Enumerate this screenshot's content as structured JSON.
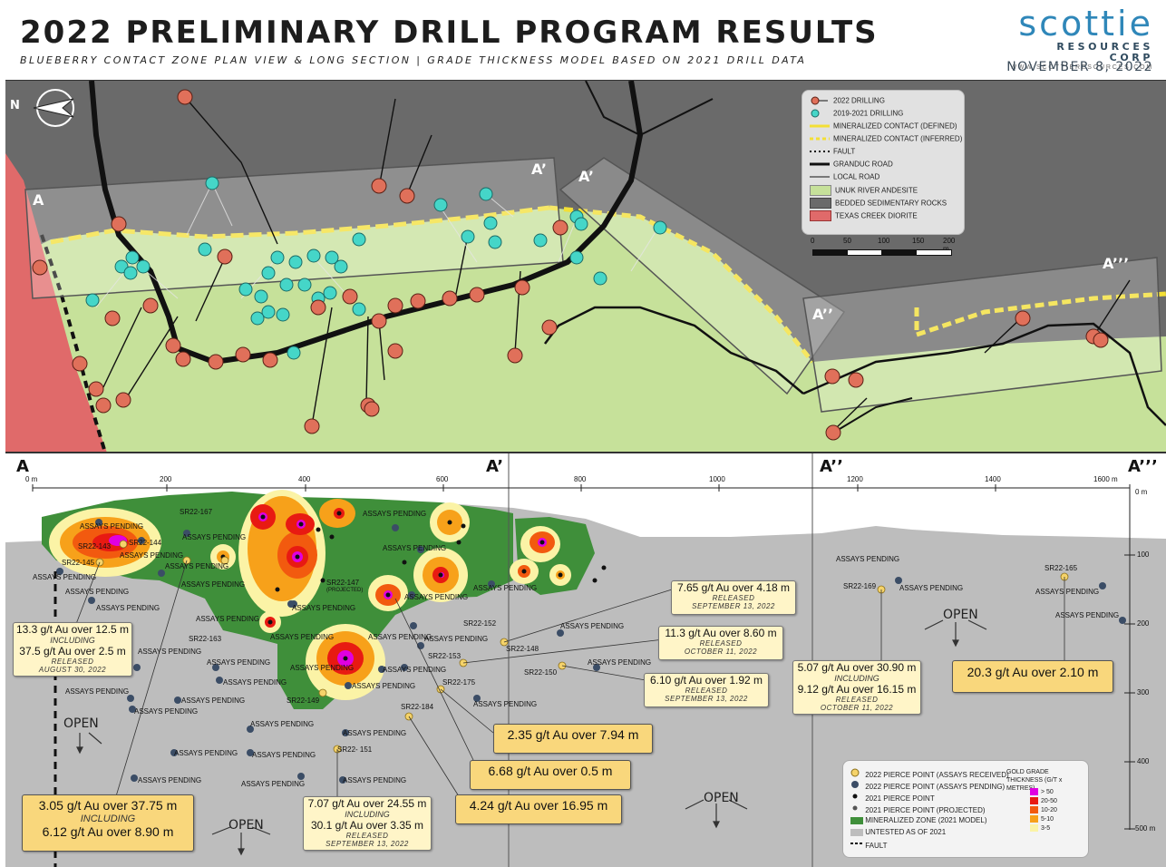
{
  "header": {
    "title": "2022 PRELIMINARY DRILL PROGRAM RESULTS",
    "subtitle": "BLUEBERRY CONTACT ZONE PLAN VIEW & LONG SECTION | GRADE THICKNESS MODEL BASED ON 2021 DRILL DATA",
    "logo_word": "scottie",
    "logo_sub": "RESOURCES CORP",
    "logo_url": "WWW.SCOTTIERESOURCES.COM",
    "date": "NOVEMBER 8, 2022"
  },
  "plan_view": {
    "north_arrow": "N",
    "section_labels": [
      "A",
      "A’",
      "A’",
      "A’’",
      "A’’’"
    ],
    "legend": [
      {
        "label": "2022 DRILLING",
        "icon": "salmon-collar-icon"
      },
      {
        "label": "2019-2021 DRILLING",
        "icon": "cyan-collar-icon"
      },
      {
        "label": "MINERALIZED CONTACT (DEFINED)",
        "icon": "yellow-line-icon"
      },
      {
        "label": "MINERALIZED CONTACT (INFERRED)",
        "icon": "yellow-dashed-line-icon"
      },
      {
        "label": "FAULT",
        "icon": "dotted-line-icon"
      },
      {
        "label": "GRANDUC ROAD",
        "icon": "thick-line-icon"
      },
      {
        "label": "LOCAL ROAD",
        "icon": "thin-line-icon"
      },
      {
        "label": "UNUK RIVER ANDESITE",
        "icon": "green-swatch-icon"
      },
      {
        "label": "BEDDED SEDIMENTARY ROCKS",
        "icon": "gray-swatch-icon"
      },
      {
        "label": "TEXAS CREEK DIORITE",
        "icon": "red-swatch-icon"
      }
    ],
    "scale_labels": [
      "0",
      "50",
      "100",
      "150",
      "200 m"
    ]
  },
  "long_section": {
    "section_labels": {
      "a": "A",
      "a1": "A’",
      "a2": "A’’",
      "a3": "A’’’"
    },
    "top_axis": [
      "200",
      "400",
      "600",
      "800",
      "1000",
      "1200",
      "1400",
      "1600 m"
    ],
    "top_axis_zero": "0 m",
    "depth_axis": [
      "0 m",
      "100",
      "200",
      "300",
      "400",
      "500 m"
    ],
    "open_label": "OPEN",
    "pending_label": "ASSAYS PENDING",
    "hole_ids": [
      "SR22-167",
      "SR22-143",
      "SR22-144",
      "SR22-145",
      "SR22-147",
      "SR22-163",
      "SR22-149",
      "SR22-152",
      "SR22-148",
      "SR22-153",
      "SR22-175",
      "SR22-150",
      "SR22-184",
      "SR22- 151",
      "SR22-169",
      "SR22-165"
    ],
    "projected_label": "(PROJECTED)",
    "callouts": [
      {
        "id": "c1",
        "result": "13.3 g/t Au over 12.5 m",
        "including": "INCLUDING",
        "result2": "37.5 g/t Au over 2.5 m",
        "released": "RELEASED",
        "date": "AUGUST 30, 2022"
      },
      {
        "id": "c2",
        "result": "7.65 g/t Au over 4.18 m",
        "released": "RELEASED",
        "date": "SEPTEMBER 13, 2022"
      },
      {
        "id": "c3",
        "result": "11.3 g/t Au over 8.60 m",
        "released": "RELEASED",
        "date": "OCTOBER 11, 2022"
      },
      {
        "id": "c4",
        "result": "6.10 g/t Au over 1.92 m",
        "released": "RELEASED",
        "date": "SEPTEMBER 13, 2022"
      },
      {
        "id": "c5",
        "result": "5.07 g/t Au over 30.90 m",
        "including": "INCLUDING",
        "result2": "9.12 g/t Au over 16.15 m",
        "released": "RELEASED",
        "date": "OCTOBER 11, 2022"
      },
      {
        "id": "c6",
        "result": "7.07 g/t Au over 24.55 m",
        "including": "INCLUDING",
        "result2": "30.1 g/t Au over 3.35 m",
        "released": "RELEASED",
        "date": "SEPTEMBER 13, 2022"
      }
    ],
    "big_callouts": [
      {
        "id": "b1",
        "result": "20.3 g/t Au over 2.10 m"
      },
      {
        "id": "b2",
        "result": "2.35 g/t Au over 7.94 m"
      },
      {
        "id": "b3",
        "result": "6.68 g/t Au over 0.5 m"
      },
      {
        "id": "b4",
        "result": "4.24 g/t Au over 16.95 m"
      },
      {
        "id": "b5",
        "result": "3.05 g/t Au over 37.75 m",
        "including": "INCLUDING",
        "result2": "6.12 g/t Au over 8.90 m"
      }
    ],
    "legend": [
      {
        "label": "2022 PIERCE POINT (ASSAYS RECEIVED)",
        "icon": "yellow-point-icon"
      },
      {
        "label": "2022 PIERCE POINT (ASSAYS PENDING)",
        "icon": "navy-point-icon"
      },
      {
        "label": "2021 PIERCE POINT",
        "icon": "black-point-icon"
      },
      {
        "label": "2021 PIERCE POINT (PROJECTED)",
        "icon": "dark-gray-point-icon"
      },
      {
        "label": "MINERALIZED ZONE (2021 MODEL)",
        "icon": "green-swatch-icon"
      },
      {
        "label": "UNTESTED AS OF 2021",
        "icon": "gray-swatch-icon"
      },
      {
        "label": "FAULT",
        "icon": "dashed-line-icon"
      }
    ],
    "grade_legend_title": "GOLD GRADE THICKNESS (G/T x METRES)",
    "grade_classes": [
      {
        "label": "> 50",
        "color": "#e000e0"
      },
      {
        "label": "20-50",
        "color": "#e81a12"
      },
      {
        "label": "10-20",
        "color": "#f25a0f"
      },
      {
        "label": "5-10",
        "color": "#f7a11a"
      },
      {
        "label": "3-5",
        "color": "#fbf3a6"
      }
    ]
  },
  "colors": {
    "andesite": "#c6e19a",
    "sediments": "#6a6a6a",
    "diorite": "#e06a6a",
    "collar_2022": "#e0705a",
    "collar_2019": "#45d6c8",
    "contact": "#f3df35",
    "mineralized_zone": "#3f8f3a",
    "untested": "#bdbdbd"
  }
}
